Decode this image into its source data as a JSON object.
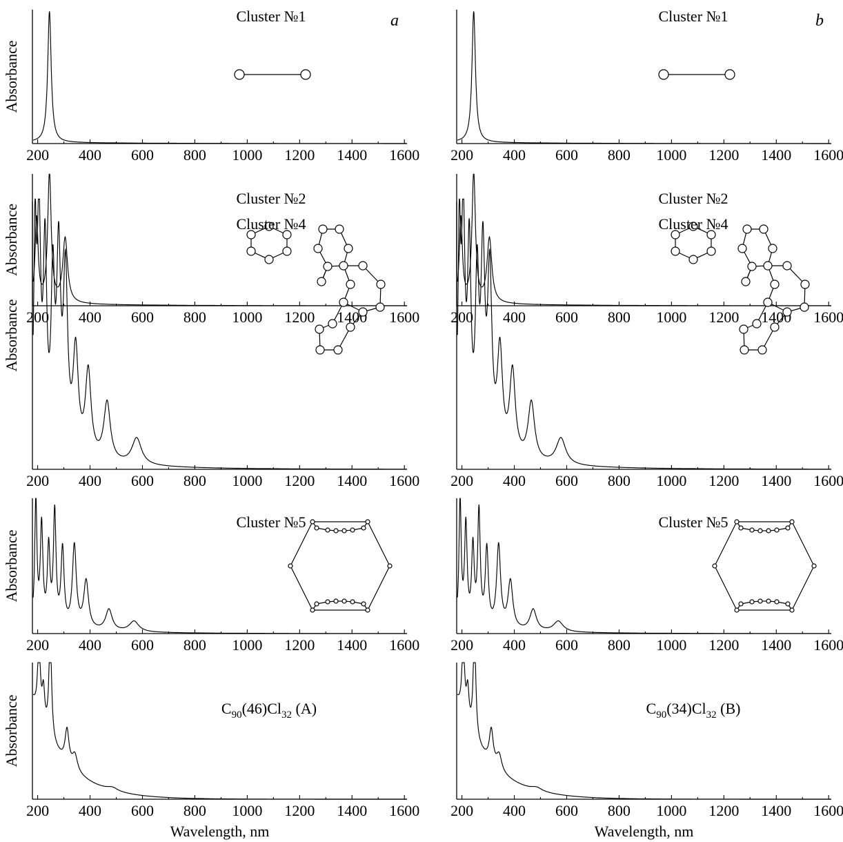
{
  "panel_letters": [
    "a",
    "b"
  ],
  "chart_data": [
    {
      "type": "line",
      "column": "a",
      "row": 0,
      "title": "Cluster №1",
      "ylabel": "Absorbance",
      "xlabel": "",
      "xlim": [
        180,
        1610
      ],
      "xticks": [
        200,
        400,
        600,
        800,
        1000,
        1200,
        1400,
        1600
      ],
      "series": [
        {
          "peaks": [
            {
              "x": 245,
              "h": 1.0,
              "w": 8
            }
          ],
          "tail": {
            "amp": 0.01,
            "decay": 350
          }
        }
      ],
      "structure": "dimer"
    },
    {
      "type": "line",
      "column": "b",
      "row": 0,
      "title": "Cluster №1",
      "ylabel": "",
      "xlabel": "",
      "xlim": [
        180,
        1610
      ],
      "xticks": [
        200,
        400,
        600,
        800,
        1000,
        1200,
        1400,
        1600
      ],
      "series": [
        {
          "peaks": [
            {
              "x": 245,
              "h": 1.0,
              "w": 8
            }
          ],
          "tail": {
            "amp": 0.01,
            "decay": 350
          }
        }
      ],
      "structure": "dimer"
    },
    {
      "type": "line",
      "column": "a",
      "row": 1,
      "title": "Cluster №2",
      "ylabel": "Absorbance",
      "xlabel": "",
      "xlim": [
        180,
        1610
      ],
      "xticks": [
        200,
        400,
        600,
        800,
        1000,
        1200,
        1400,
        1600
      ],
      "series": [
        {
          "peaks": [
            {
              "x": 196,
              "h": 0.65,
              "w": 7
            },
            {
              "x": 245,
              "h": 1.0,
              "w": 8
            },
            {
              "x": 305,
              "h": 0.5,
              "w": 11
            }
          ],
          "tail": {
            "amp": 0.02,
            "decay": 300
          }
        }
      ],
      "structure": "ring6"
    },
    {
      "type": "line",
      "column": "b",
      "row": 1,
      "title": "Cluster №2",
      "ylabel": "",
      "xlabel": "",
      "xlim": [
        180,
        1610
      ],
      "xticks": [
        200,
        400,
        600,
        800,
        1000,
        1200,
        1400,
        1600
      ],
      "series": [
        {
          "peaks": [
            {
              "x": 196,
              "h": 0.65,
              "w": 7
            },
            {
              "x": 245,
              "h": 1.0,
              "w": 8
            },
            {
              "x": 305,
              "h": 0.5,
              "w": 11
            }
          ],
          "tail": {
            "amp": 0.02,
            "decay": 300
          }
        }
      ],
      "structure": "ring6"
    },
    {
      "type": "line",
      "column": "a",
      "row": 2,
      "title": "Cluster №4",
      "ylabel": "Absorbance",
      "xlabel": "",
      "xlim": [
        180,
        1610
      ],
      "xticks": [
        200,
        400,
        600,
        800,
        1000,
        1200,
        1400,
        1600
      ],
      "series": [
        {
          "peaks": [
            {
              "x": 190,
              "h": 0.75,
              "w": 6
            },
            {
              "x": 205,
              "h": 0.82,
              "w": 8
            },
            {
              "x": 228,
              "h": 0.72,
              "w": 8
            },
            {
              "x": 258,
              "h": 0.6,
              "w": 8
            },
            {
              "x": 280,
              "h": 0.7,
              "w": 9
            },
            {
              "x": 306,
              "h": 0.65,
              "w": 10
            },
            {
              "x": 345,
              "h": 0.38,
              "w": 12
            },
            {
              "x": 393,
              "h": 0.32,
              "w": 13
            },
            {
              "x": 465,
              "h": 0.22,
              "w": 15
            },
            {
              "x": 578,
              "h": 0.1,
              "w": 22
            }
          ],
          "tail": {
            "amp": 0.05,
            "decay": 260
          }
        }
      ],
      "structure": "fused"
    },
    {
      "type": "line",
      "column": "b",
      "row": 2,
      "title": "Cluster №4",
      "ylabel": "",
      "xlabel": "",
      "xlim": [
        180,
        1610
      ],
      "xticks": [
        200,
        400,
        600,
        800,
        1000,
        1200,
        1400,
        1600
      ],
      "series": [
        {
          "peaks": [
            {
              "x": 190,
              "h": 0.75,
              "w": 6
            },
            {
              "x": 205,
              "h": 0.82,
              "w": 8
            },
            {
              "x": 228,
              "h": 0.72,
              "w": 8
            },
            {
              "x": 258,
              "h": 0.6,
              "w": 8
            },
            {
              "x": 280,
              "h": 0.7,
              "w": 9
            },
            {
              "x": 306,
              "h": 0.65,
              "w": 10
            },
            {
              "x": 345,
              "h": 0.38,
              "w": 12
            },
            {
              "x": 393,
              "h": 0.32,
              "w": 13
            },
            {
              "x": 465,
              "h": 0.22,
              "w": 15
            },
            {
              "x": 578,
              "h": 0.1,
              "w": 22
            }
          ],
          "tail": {
            "amp": 0.05,
            "decay": 260
          }
        }
      ],
      "structure": "fused"
    },
    {
      "type": "line",
      "column": "a",
      "row": 3,
      "title": "Cluster №5",
      "ylabel": "Absorbance",
      "xlabel": "",
      "xlim": [
        180,
        1610
      ],
      "xticks": [
        200,
        400,
        600,
        800,
        1000,
        1200,
        1400,
        1600
      ],
      "series": [
        {
          "peaks": [
            {
              "x": 193,
              "h": 0.95,
              "w": 5
            },
            {
              "x": 215,
              "h": 0.75,
              "w": 6
            },
            {
              "x": 242,
              "h": 0.58,
              "w": 6
            },
            {
              "x": 265,
              "h": 0.85,
              "w": 6
            },
            {
              "x": 295,
              "h": 0.58,
              "w": 7
            },
            {
              "x": 340,
              "h": 0.62,
              "w": 9
            },
            {
              "x": 385,
              "h": 0.36,
              "w": 11
            },
            {
              "x": 472,
              "h": 0.16,
              "w": 15
            },
            {
              "x": 568,
              "h": 0.08,
              "w": 22
            }
          ],
          "tail": {
            "amp": 0.04,
            "decay": 250
          }
        }
      ],
      "structure": "cage"
    },
    {
      "type": "line",
      "column": "b",
      "row": 3,
      "title": "Cluster №5",
      "ylabel": "",
      "xlabel": "",
      "xlim": [
        180,
        1610
      ],
      "xticks": [
        200,
        400,
        600,
        800,
        1000,
        1200,
        1400,
        1600
      ],
      "series": [
        {
          "peaks": [
            {
              "x": 193,
              "h": 0.95,
              "w": 5
            },
            {
              "x": 215,
              "h": 0.75,
              "w": 6
            },
            {
              "x": 242,
              "h": 0.58,
              "w": 6
            },
            {
              "x": 265,
              "h": 0.85,
              "w": 6
            },
            {
              "x": 295,
              "h": 0.58,
              "w": 7
            },
            {
              "x": 340,
              "h": 0.62,
              "w": 9
            },
            {
              "x": 385,
              "h": 0.36,
              "w": 11
            },
            {
              "x": 472,
              "h": 0.16,
              "w": 15
            },
            {
              "x": 568,
              "h": 0.08,
              "w": 22
            }
          ],
          "tail": {
            "amp": 0.04,
            "decay": 250
          }
        }
      ],
      "structure": "cage"
    },
    {
      "type": "line",
      "column": "a",
      "row": 4,
      "title": "C90(46)Cl32 (A)",
      "ylabel": "Absorbance",
      "xlabel": "Wavelength, nm",
      "xlim": [
        180,
        1610
      ],
      "xticks": [
        200,
        400,
        600,
        800,
        1000,
        1200,
        1400,
        1600
      ],
      "series": [
        {
          "peaks": [
            {
              "x": 205,
              "h": 0.55,
              "w": 6
            },
            {
              "x": 222,
              "h": 0.25,
              "w": 6
            },
            {
              "x": 248,
              "h": 0.8,
              "w": 6
            },
            {
              "x": 312,
              "h": 0.25,
              "w": 9
            },
            {
              "x": 342,
              "h": 0.12,
              "w": 12
            },
            {
              "x": 485,
              "h": 0.025,
              "w": 25
            }
          ],
          "tail": {
            "amp": 0.72,
            "decay": 125
          }
        }
      ],
      "structure": "none"
    },
    {
      "type": "line",
      "column": "b",
      "row": 4,
      "title": "C90(34)Cl32 (B)",
      "ylabel": "",
      "xlabel": "Wavelength, nm",
      "xlim": [
        180,
        1610
      ],
      "xticks": [
        200,
        400,
        600,
        800,
        1000,
        1200,
        1400,
        1600
      ],
      "series": [
        {
          "peaks": [
            {
              "x": 205,
              "h": 0.55,
              "w": 6
            },
            {
              "x": 222,
              "h": 0.25,
              "w": 6
            },
            {
              "x": 248,
              "h": 0.8,
              "w": 6
            },
            {
              "x": 312,
              "h": 0.25,
              "w": 9
            },
            {
              "x": 342,
              "h": 0.12,
              "w": 12
            },
            {
              "x": 485,
              "h": 0.025,
              "w": 25
            }
          ],
          "tail": {
            "amp": 0.72,
            "decay": 125
          }
        }
      ],
      "structure": "none"
    }
  ]
}
